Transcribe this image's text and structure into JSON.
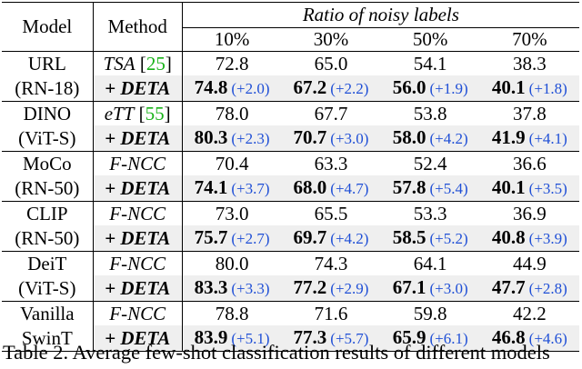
{
  "header": {
    "model": "Model",
    "method": "Method",
    "ratio_caption": "Ratio of noisy labels",
    "ratios": [
      "10%",
      "30%",
      "50%",
      "70%"
    ]
  },
  "groups": [
    {
      "model_line1": "URL",
      "model_line2": "(RN-18)",
      "baseline": {
        "method": "TSA",
        "cite": "25",
        "values": [
          "72.8",
          "65.0",
          "54.1",
          "38.3"
        ]
      },
      "deta": {
        "method": "+ DETA",
        "values": [
          "74.8",
          "67.2",
          "56.0",
          "40.1"
        ],
        "deltas": [
          "(+2.0)",
          "(+2.2)",
          "(+1.9)",
          "(+1.8)"
        ]
      }
    },
    {
      "model_line1": "DINO",
      "model_line2": "(ViT-S)",
      "baseline": {
        "method": "eTT",
        "cite": "55",
        "values": [
          "78.0",
          "67.7",
          "53.8",
          "37.8"
        ]
      },
      "deta": {
        "method": "+ DETA",
        "values": [
          "80.3",
          "70.7",
          "58.0",
          "41.9"
        ],
        "deltas": [
          "(+2.3)",
          "(+3.0)",
          "(+4.2)",
          "(+4.1)"
        ]
      }
    },
    {
      "model_line1": "MoCo",
      "model_line2": "(RN-50)",
      "baseline": {
        "method": "F-NCC",
        "cite": "",
        "values": [
          "70.4",
          "63.3",
          "52.4",
          "36.6"
        ]
      },
      "deta": {
        "method": "+ DETA",
        "values": [
          "74.1",
          "68.0",
          "57.8",
          "40.1"
        ],
        "deltas": [
          "(+3.7)",
          "(+4.7)",
          "(+5.4)",
          "(+3.5)"
        ]
      }
    },
    {
      "model_line1": "CLIP",
      "model_line2": "(RN-50)",
      "baseline": {
        "method": "F-NCC",
        "cite": "",
        "values": [
          "73.0",
          "65.5",
          "53.3",
          "36.9"
        ]
      },
      "deta": {
        "method": "+ DETA",
        "values": [
          "75.7",
          "69.7",
          "58.5",
          "40.8"
        ],
        "deltas": [
          "(+2.7)",
          "(+4.2)",
          "(+5.2)",
          "(+3.9)"
        ]
      }
    },
    {
      "model_line1": "DeiT",
      "model_line2": "(ViT-S)",
      "baseline": {
        "method": "F-NCC",
        "cite": "",
        "values": [
          "80.0",
          "74.3",
          "64.1",
          "44.9"
        ]
      },
      "deta": {
        "method": "+ DETA",
        "values": [
          "83.3",
          "77.2",
          "67.1",
          "47.7"
        ],
        "deltas": [
          "(+3.3)",
          "(+2.9)",
          "(+3.0)",
          "(+2.8)"
        ]
      }
    },
    {
      "model_line1": "Vanilla",
      "model_line2": "SwinT",
      "baseline": {
        "method": "F-NCC",
        "cite": "",
        "values": [
          "78.8",
          "71.6",
          "59.8",
          "42.2"
        ]
      },
      "deta": {
        "method": "+ DETA",
        "values": [
          "83.9",
          "77.3",
          "65.9",
          "46.8"
        ],
        "deltas": [
          "(+5.1)",
          "(+5.7)",
          "(+6.1)",
          "(+4.6)"
        ]
      }
    }
  ],
  "caption": "Table 2. Average few-shot classification results of different models"
}
